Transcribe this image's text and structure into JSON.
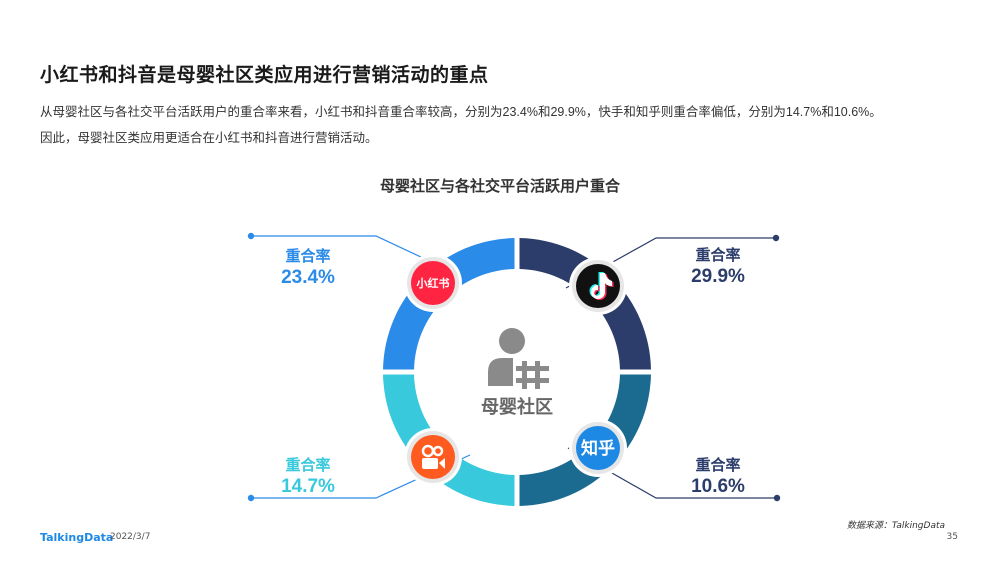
{
  "page": {
    "title": "小红书和抖音是母婴社区类应用进行营销活动的重点",
    "desc_line1": "从母婴社区与各社交平台活跃用户的重合率来看，小红书和抖音重合率较高，分别为23.4%和29.9%，快手和知乎则重合率偏低，分别为14.7%和10.6%。",
    "desc_line2": "因此，母婴社区类应用更适合在小红书和抖音进行营销活动。",
    "source": "数据来源：TalkingData",
    "footer_logo": "TalkingData",
    "footer_date": "2022/3/7",
    "page_number": "35"
  },
  "chart_data": {
    "type": "pie",
    "title": "母婴社区与各社交平台活跃用户重合",
    "center_label": "母婴社区",
    "value_label": "重合率",
    "categories": [
      "抖音",
      "知乎",
      "快手",
      "小红书"
    ],
    "values": [
      29.9,
      10.6,
      14.7,
      23.4
    ],
    "display_values": [
      "29.9%",
      "10.6%",
      "14.7%",
      "23.4%"
    ],
    "icon_names": [
      "douyin-icon",
      "zhihu-icon",
      "kuaishou-icon",
      "xiaohongshu-icon"
    ],
    "icon_texts": [
      "",
      "知乎",
      "",
      "小红书"
    ],
    "colors": {
      "segments": [
        "#2c3d6b",
        "#1b6b91",
        "#38c9dc",
        "#2b8be8"
      ],
      "label_dark": "#2c3d6b",
      "label_teal": "#38c9dc",
      "label_blue": "#2b8be8",
      "callout_dark": "#2c3d6b",
      "callout_light": "#2b8be8",
      "person_icon": "#8a8a8a",
      "douyin_bg": "#111111",
      "zhihu_bg": "#1e88e5",
      "kuaishou_bg": "#ff5a1f",
      "xiaohongshu_bg": "#ff2442"
    }
  }
}
